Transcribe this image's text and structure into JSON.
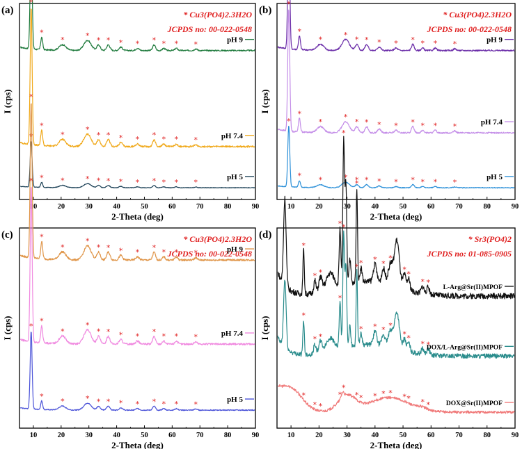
{
  "chart_data": [
    {
      "type": "line",
      "panel_label": "(a)",
      "legend_lines": [
        "* Cu3(PO4)2.3H2O",
        "JCPDS no: 00-022-0548"
      ],
      "xlabel": "2-Theta (deg)",
      "ylabel": "I (cps)",
      "xlim": [
        5,
        90
      ],
      "x_ticks": [
        10,
        20,
        30,
        40,
        50,
        60,
        70,
        80,
        90
      ],
      "series": [
        {
          "name": "pH 9",
          "color": "#1e7a3c",
          "style": "sharp"
        },
        {
          "name": "pH 7.4",
          "color": "#f0a818",
          "style": "sharp"
        },
        {
          "name": "pH 5",
          "color": "#1a3f55",
          "style": "sharp"
        }
      ],
      "peaks_2theta": [
        9.2,
        13.0,
        20.5,
        29.5,
        33.5,
        37.0,
        41.5,
        47.5,
        53.5,
        57.0,
        61.5,
        68.5
      ]
    },
    {
      "type": "line",
      "panel_label": "(b)",
      "legend_lines": [
        "* Cu3(PO4)2.3H2O",
        "JCPDS no: 00-022-0548"
      ],
      "xlabel": "2-Theta (deg)",
      "ylabel": "I (cps)",
      "xlim": [
        5,
        90
      ],
      "x_ticks": [
        10,
        20,
        30,
        40,
        50,
        60,
        70,
        80,
        90
      ],
      "series": [
        {
          "name": "pH 9",
          "color": "#6a2ca8",
          "style": "sharp"
        },
        {
          "name": "pH 7.4",
          "color": "#c48ee8",
          "style": "sharp"
        },
        {
          "name": "pH 5",
          "color": "#2a8fd8",
          "style": "sharp"
        }
      ],
      "peaks_2theta": [
        9.2,
        13.0,
        20.5,
        29.5,
        33.5,
        37.0,
        41.5,
        47.5,
        53.5,
        57.0,
        61.5,
        68.5
      ]
    },
    {
      "type": "line",
      "panel_label": "(c)",
      "legend_lines": [
        "* Cu3(PO4)2.3H2O",
        "JCPDS no: 00-022-0548"
      ],
      "xlabel": "2-Theta (deg)",
      "ylabel": "I (cps)",
      "xlim": [
        5,
        90
      ],
      "x_ticks": [
        10,
        20,
        30,
        40,
        50,
        60,
        70,
        80,
        90
      ],
      "series": [
        {
          "name": "pH 9",
          "color": "#e0964a",
          "style": "sharp"
        },
        {
          "name": "pH 7.4",
          "color": "#f08ae0",
          "style": "sharp"
        },
        {
          "name": "pH 5",
          "color": "#4a52d8",
          "style": "sharp"
        }
      ],
      "peaks_2theta": [
        9.2,
        13.0,
        20.5,
        29.5,
        33.5,
        37.0,
        41.5,
        47.5,
        53.5,
        57.0,
        61.5,
        68.5
      ]
    },
    {
      "type": "line",
      "panel_label": "(d)",
      "legend_lines": [
        "* Sr3(PO4)2",
        "JCPDS no: 01-085-0905"
      ],
      "xlabel": "2-Theta (deg)",
      "ylabel": "I (cps)",
      "xlim": [
        5,
        90
      ],
      "x_ticks": [
        10,
        20,
        30,
        40,
        50,
        60,
        70,
        80,
        90
      ],
      "series": [
        {
          "name": "L-Arg@Sr(II)MPOF",
          "color": "#111111",
          "style": "sr"
        },
        {
          "name": "DOX/L-Arg@Sr(II)MPOF",
          "color": "#2a8c8c",
          "style": "sr"
        },
        {
          "name": "DOX@Sr(II)MPOF",
          "color": "#f07a7a",
          "style": "amorph"
        }
      ],
      "peaks_2theta": [
        14.5,
        18.5,
        20.5,
        27.5,
        28.8,
        33.5,
        35.0,
        40.0,
        43.0,
        45.5,
        50.5,
        52.0,
        57.0,
        59.0
      ]
    }
  ]
}
